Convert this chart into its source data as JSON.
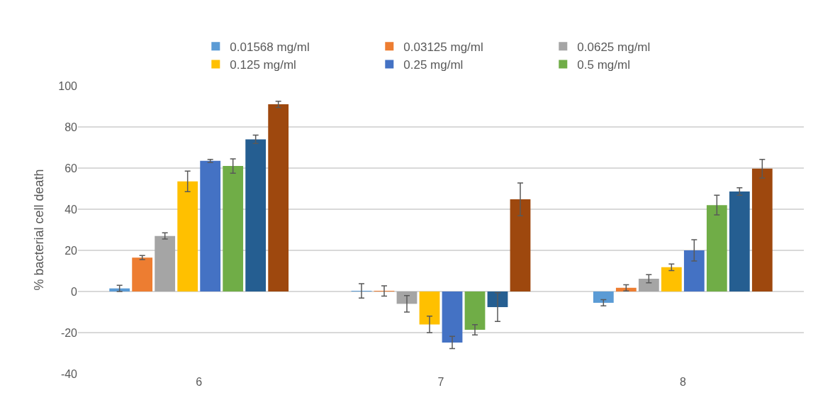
{
  "chart_data": {
    "type": "bar",
    "ylabel": "% bacterial cell death",
    "categories": [
      "6",
      "7",
      "8"
    ],
    "series": [
      {
        "name": "0.01568 mg/ml",
        "color": "#5b9bd5",
        "values": [
          1.5,
          0.3,
          -5.5
        ],
        "errors": [
          1.5,
          3.5,
          1.5
        ]
      },
      {
        "name": "0.03125 mg/ml",
        "color": "#ed7d31",
        "values": [
          16.5,
          0.3,
          1.8
        ],
        "errors": [
          1,
          2.5,
          1.5
        ]
      },
      {
        "name": "0.0625 mg/ml",
        "color": "#a5a5a5",
        "values": [
          27,
          -6,
          6.2
        ],
        "errors": [
          1.5,
          4,
          2
        ]
      },
      {
        "name": "0.125 mg/ml",
        "color": "#ffc000",
        "values": [
          53.5,
          -16,
          11.8
        ],
        "errors": [
          5,
          4,
          1.6
        ]
      },
      {
        "name": "0.25 mg/ml",
        "color": "#4472c4",
        "values": [
          63.5,
          -24.8,
          20
        ],
        "errors": [
          0.7,
          3,
          5.2
        ]
      },
      {
        "name": "0.5 mg/ml",
        "color": "#70ad47",
        "values": [
          61,
          -18.6,
          42
        ],
        "errors": [
          3.5,
          2.5,
          4.8
        ]
      },
      {
        "color": "#255e91",
        "values": [
          74,
          -7.6,
          48.6
        ],
        "errors": [
          2,
          7,
          1.8
        ]
      },
      {
        "color": "#9e480e",
        "values": [
          91,
          44.8,
          59.7
        ],
        "errors": [
          1.5,
          8,
          4.5
        ]
      }
    ],
    "ylim": [
      -40,
      100
    ],
    "yticks": [
      -40,
      -20,
      0,
      20,
      40,
      60,
      80,
      100
    ],
    "grid": "y",
    "legend": "top"
  }
}
